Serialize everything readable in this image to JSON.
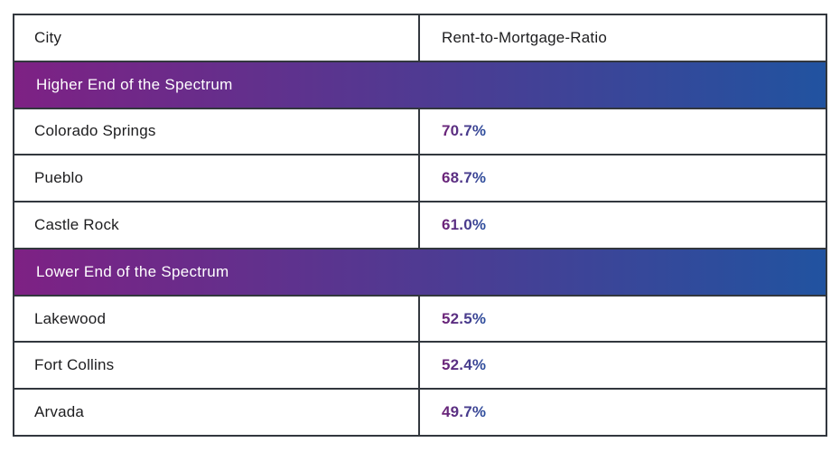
{
  "chart_data": {
    "type": "table",
    "columns": [
      "City",
      "Rent-to-Mortgage-Ratio"
    ],
    "sections": [
      {
        "label": "Higher End of the Spectrum",
        "rows": [
          {
            "city": "Colorado Springs",
            "ratio_pct": 70.7,
            "ratio_label": "70.7%"
          },
          {
            "city": "Pueblo",
            "ratio_pct": 68.7,
            "ratio_label": "68.7%"
          },
          {
            "city": "Castle Rock",
            "ratio_pct": 61.0,
            "ratio_label": "61.0%"
          }
        ]
      },
      {
        "label": "Lower End of the Spectrum",
        "rows": [
          {
            "city": "Lakewood",
            "ratio_pct": 52.5,
            "ratio_label": "52.5%"
          },
          {
            "city": "Fort Collins",
            "ratio_pct": 52.4,
            "ratio_label": "52.4%"
          },
          {
            "city": "Arvada",
            "ratio_pct": 49.7,
            "ratio_label": "49.7%"
          }
        ]
      }
    ]
  },
  "theme": {
    "band_gradient_start": "#7e2184",
    "band_gradient_end": "#2153a0",
    "value_gradient_start": "#6f2176",
    "value_gradient_end": "#2a4f9e",
    "border_color": "#32373e",
    "text_color": "#1d1d1f",
    "band_text_color": "#ffffff",
    "background_color": "#ffffff"
  }
}
